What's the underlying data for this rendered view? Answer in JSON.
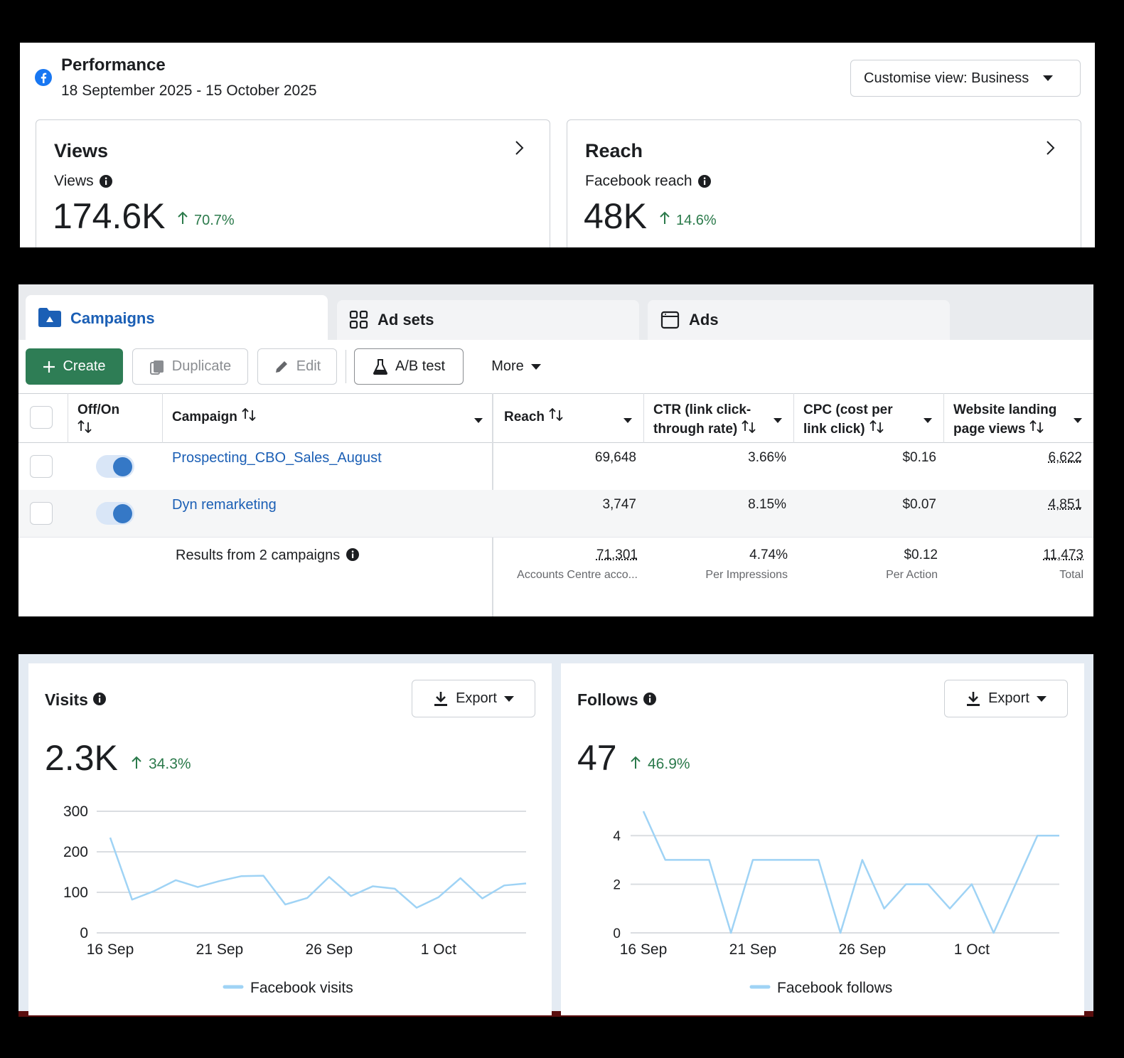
{
  "performance": {
    "title": "Performance",
    "date_range": "18 September 2025 - 15 October 2025",
    "view_button": "Customise view: Business",
    "cards": [
      {
        "title": "Views",
        "label": "Views",
        "value": "174.6K",
        "change": "70.7%"
      },
      {
        "title": "Reach",
        "label": "Facebook reach",
        "value": "48K",
        "change": "14.6%"
      }
    ]
  },
  "tabs": [
    "Campaigns",
    "Ad sets",
    "Ads"
  ],
  "toolbar": {
    "create": "Create",
    "duplicate": "Duplicate",
    "edit": "Edit",
    "ab_test": "A/B test",
    "more": "More"
  },
  "table": {
    "columns": [
      "Off/On",
      "Campaign",
      "Reach",
      "CTR (link click-through rate)",
      "CPC (cost per link click)",
      "Website landing page views"
    ],
    "rows": [
      {
        "name": "Prospecting_CBO_Sales_August",
        "cells": [
          "69,648",
          "3.66%",
          "$0.16",
          "6,622"
        ]
      },
      {
        "name": "Dyn remarketing",
        "cells": [
          "3,747",
          "8.15%",
          "$0.07",
          "4,851"
        ]
      }
    ],
    "summary": {
      "label": "Results from 2 campaigns",
      "values": [
        "71,301",
        "4.74%",
        "$0.12",
        "11,473"
      ],
      "notes": [
        "Accounts Centre acco...",
        "Per Impressions",
        "Per Action",
        "Total"
      ]
    }
  },
  "insights": [
    {
      "title": "Visits",
      "export": "Export",
      "value": "2.3K",
      "change": "34.3%"
    },
    {
      "title": "Follows",
      "export": "Export",
      "value": "47",
      "change": "46.9%"
    }
  ],
  "chart_data": [
    {
      "type": "line",
      "categories": [
        "16 Sep",
        null,
        null,
        null,
        null,
        "21 Sep",
        null,
        null,
        null,
        null,
        "26 Sep",
        null,
        null,
        null,
        null,
        "1 Oct",
        null,
        null,
        null,
        null
      ],
      "series": [
        {
          "name": "Facebook visits",
          "color": "#9fd3f5",
          "values": [
            235,
            82,
            103,
            130,
            113,
            128,
            140,
            141,
            70,
            86,
            138,
            91,
            115,
            109,
            62,
            88,
            135,
            85,
            117,
            122
          ]
        }
      ],
      "ylim": [
        0,
        300
      ],
      "yticks": [
        0,
        100,
        200,
        300
      ],
      "grid": true
    },
    {
      "type": "line",
      "categories": [
        "16 Sep",
        null,
        null,
        null,
        null,
        "21 Sep",
        null,
        null,
        null,
        null,
        "26 Sep",
        null,
        null,
        null,
        null,
        "1 Oct",
        null,
        null,
        null,
        null
      ],
      "series": [
        {
          "name": "Facebook follows",
          "color": "#9fd3f5",
          "values": [
            5,
            3,
            3,
            3,
            0,
            3,
            3,
            3,
            3,
            0,
            3,
            1,
            2,
            2,
            1,
            2,
            0,
            2,
            4,
            4
          ]
        }
      ],
      "ylim": [
        0,
        5
      ],
      "yticks": [
        0,
        2,
        4
      ],
      "grid": true
    }
  ]
}
